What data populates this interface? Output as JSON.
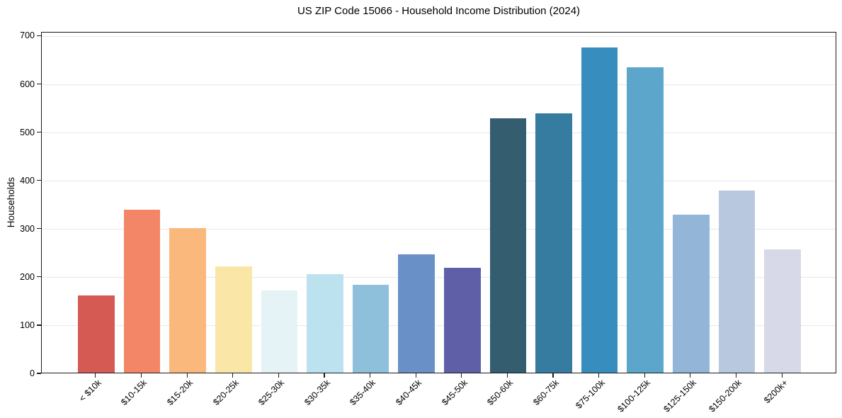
{
  "chart_data": {
    "type": "bar",
    "title": "US ZIP Code 15066 - Household Income Distribution (2024)",
    "xlabel": "",
    "ylabel": "Households",
    "categories": [
      "< $10k",
      "$10-15k",
      "$15-20k",
      "$20-25k",
      "$25-30k",
      "$30-35k",
      "$35-40k",
      "$40-45k",
      "$45-50k",
      "$50-60k",
      "$60-75k",
      "$75-100k",
      "$100-125k",
      "$125-150k",
      "$150-200k",
      "$200k+"
    ],
    "values": [
      160,
      338,
      300,
      220,
      170,
      204,
      182,
      245,
      218,
      527,
      538,
      674,
      633,
      328,
      377,
      256
    ],
    "bar_colors": [
      "#d65a54",
      "#f38667",
      "#fab87c",
      "#fae7a8",
      "#e5f2f6",
      "#bce2f0",
      "#8ec0dc",
      "#6991c7",
      "#5f5fa7",
      "#345d70",
      "#367ca0",
      "#388dbf",
      "#5ba6ca",
      "#92b5d8",
      "#b8c8de",
      "#d7d9e8"
    ],
    "yticks": [
      0,
      100,
      200,
      300,
      400,
      500,
      600,
      700
    ],
    "ylim": [
      0,
      708
    ],
    "xlim": [
      -1.19,
      16.19
    ],
    "bar_width_fraction": 0.8,
    "x_tick_rotation": 45,
    "grid": "horizontal",
    "legend_position": "none",
    "grid_color": "#e8e8e8",
    "spine_color": "#1a1a1a"
  }
}
